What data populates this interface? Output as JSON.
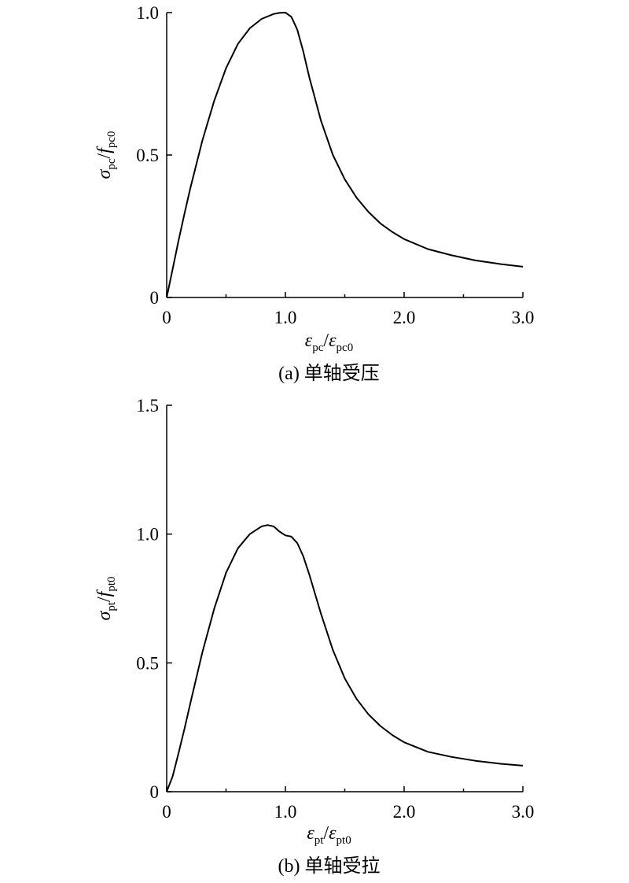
{
  "chart_data": [
    {
      "type": "line",
      "caption": "(a) 单轴受压",
      "xlabel": {
        "main": "ε",
        "sub": "pc",
        "sep": "/",
        "main2": "ε",
        "sub2": "pc0"
      },
      "ylabel": {
        "main": "σ",
        "sub": "pc",
        "sep": "/",
        "main2": "f",
        "sub2": "pc0"
      },
      "xlim": [
        0,
        3.0
      ],
      "ylim": [
        0,
        1.0
      ],
      "x_ticks": [
        {
          "value": 0,
          "label": "0"
        },
        {
          "value": 1.0,
          "label": "1.0"
        },
        {
          "value": 2.0,
          "label": "2.0"
        },
        {
          "value": 3.0,
          "label": "3.0"
        }
      ],
      "x_minor_ticks": [
        0.5,
        1.5,
        2.5
      ],
      "y_ticks": [
        {
          "value": 0,
          "label": "0"
        },
        {
          "value": 0.5,
          "label": "0.5"
        },
        {
          "value": 1.0,
          "label": "1.0"
        }
      ],
      "grid": false,
      "series": [
        {
          "x": [
            0,
            0.05,
            0.1,
            0.15,
            0.2,
            0.3,
            0.4,
            0.5,
            0.6,
            0.7,
            0.8,
            0.9,
            0.95,
            1.0,
            1.05,
            1.1,
            1.15,
            1.2,
            1.3,
            1.4,
            1.5,
            1.6,
            1.7,
            1.8,
            1.9,
            2.0,
            2.2,
            2.4,
            2.6,
            2.8,
            3.0
          ],
          "y": [
            0,
            0.1,
            0.2,
            0.295,
            0.385,
            0.55,
            0.69,
            0.805,
            0.89,
            0.945,
            0.978,
            0.995,
            0.999,
            1.0,
            0.985,
            0.94,
            0.865,
            0.775,
            0.62,
            0.5,
            0.415,
            0.35,
            0.3,
            0.26,
            0.23,
            0.205,
            0.17,
            0.148,
            0.13,
            0.118,
            0.108
          ]
        }
      ]
    },
    {
      "type": "line",
      "caption": "(b) 单轴受拉",
      "xlabel": {
        "main": "ε",
        "sub": "pt",
        "sep": "/",
        "main2": "ε",
        "sub2": "pt0"
      },
      "ylabel": {
        "main": "σ",
        "sub": "pt",
        "sep": "/",
        "main2": "f",
        "sub2": "pt0"
      },
      "xlim": [
        0,
        3.0
      ],
      "ylim": [
        0,
        1.5
      ],
      "x_ticks": [
        {
          "value": 0,
          "label": "0"
        },
        {
          "value": 1.0,
          "label": "1.0"
        },
        {
          "value": 2.0,
          "label": "2.0"
        },
        {
          "value": 3.0,
          "label": "3.0"
        }
      ],
      "x_minor_ticks": [
        0.5,
        1.5,
        2.5
      ],
      "y_ticks": [
        {
          "value": 0,
          "label": "0"
        },
        {
          "value": 0.5,
          "label": "0.5"
        },
        {
          "value": 1.0,
          "label": "1.0"
        },
        {
          "value": 1.5,
          "label": "1.5"
        }
      ],
      "grid": false,
      "series": [
        {
          "x": [
            0,
            0.05,
            0.1,
            0.15,
            0.2,
            0.3,
            0.4,
            0.5,
            0.6,
            0.7,
            0.8,
            0.85,
            0.9,
            0.95,
            1.0,
            1.05,
            1.1,
            1.15,
            1.2,
            1.3,
            1.4,
            1.5,
            1.6,
            1.7,
            1.8,
            1.9,
            2.0,
            2.2,
            2.4,
            2.6,
            2.8,
            3.0
          ],
          "y": [
            0,
            0.06,
            0.15,
            0.245,
            0.345,
            0.54,
            0.71,
            0.85,
            0.945,
            1.0,
            1.03,
            1.035,
            1.03,
            1.01,
            0.995,
            0.99,
            0.965,
            0.915,
            0.845,
            0.69,
            0.55,
            0.44,
            0.36,
            0.3,
            0.255,
            0.22,
            0.192,
            0.155,
            0.135,
            0.12,
            0.109,
            0.101
          ]
        }
      ]
    }
  ]
}
